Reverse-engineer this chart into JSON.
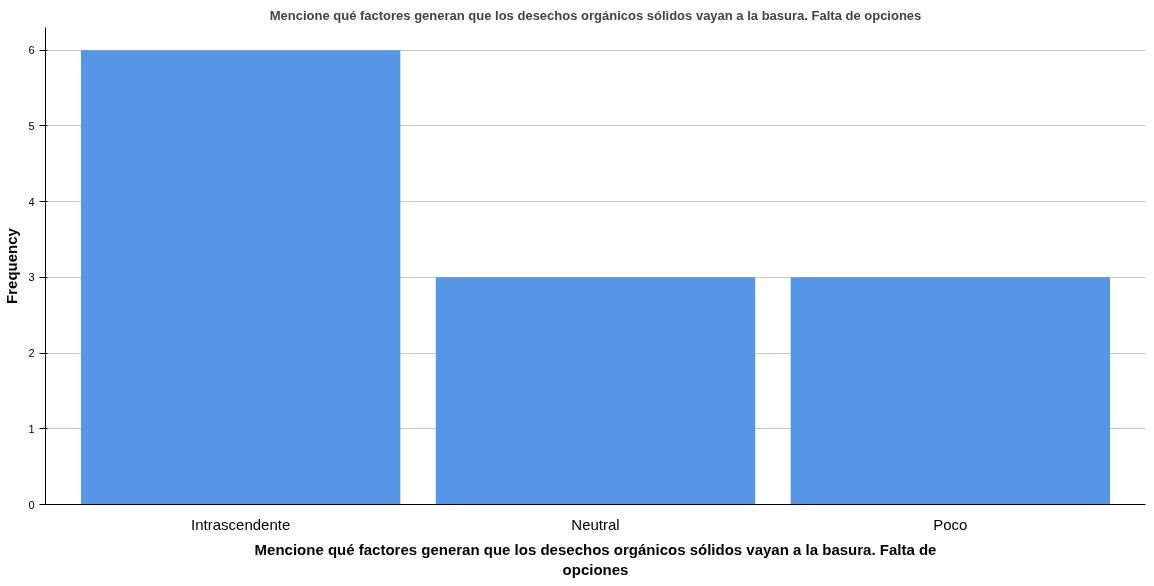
{
  "chart_data": {
    "type": "bar",
    "title": "Mencione qué factores generan que los desechos orgánicos sólidos vayan a la basura. Falta de opciones",
    "xlabel": "Mencione qué factores generan que los desechos orgánicos sólidos vayan a la basura. Falta de opciones",
    "ylabel": "Frequency",
    "categories": [
      "Intrascendente",
      "Neutral",
      "Poco"
    ],
    "values": [
      6,
      3,
      3
    ],
    "color": "#5596e6",
    "ylim": [
      0,
      6.3
    ],
    "yticks": [
      0,
      1,
      2,
      3,
      4,
      5,
      6
    ],
    "grid": "y"
  }
}
